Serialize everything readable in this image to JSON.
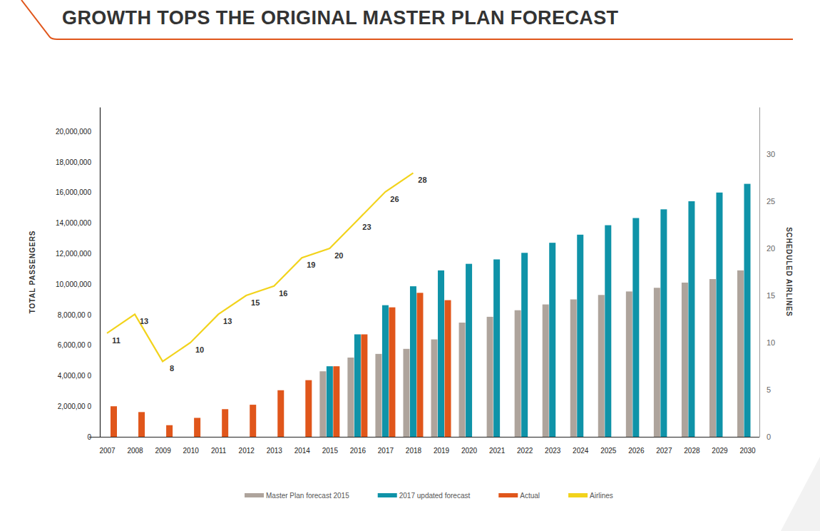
{
  "chart_data": {
    "type": "bar",
    "title": "GROWTH TOPS THE ORIGINAL MASTER PLAN FORECAST",
    "y_label": "TOTAL PASSENGERS",
    "y2_label": "SCHEDULED AIRLINES",
    "categories": [
      "2007",
      "2008",
      "2009",
      "2010",
      "2011",
      "2012",
      "2013",
      "2014",
      "2015",
      "2016",
      "2017",
      "2018",
      "2019",
      "2020",
      "2021",
      "2022",
      "2023",
      "2024",
      "2025",
      "2026",
      "2027",
      "2028",
      "2029",
      "2030"
    ],
    "series": [
      {
        "name": "Master Plan forecast 2015",
        "type": "bar",
        "color": "#aea49c",
        "values": [
          null,
          null,
          null,
          null,
          null,
          null,
          null,
          null,
          4290000,
          5190000,
          5430000,
          5760000,
          6380000,
          7480000,
          7860000,
          8290000,
          8670000,
          9000000,
          9290000,
          9520000,
          9760000,
          10100000,
          10330000,
          10900000
        ]
      },
      {
        "name": "2017 updated forecast",
        "type": "bar",
        "color": "#0f93a8",
        "values": [
          null,
          null,
          null,
          null,
          null,
          null,
          null,
          null,
          4620000,
          6710000,
          8620000,
          9860000,
          10900000,
          11330000,
          11620000,
          12050000,
          12710000,
          13240000,
          13860000,
          14330000,
          14900000,
          15430000,
          16000000,
          16570000
        ]
      },
      {
        "name": "Actual",
        "type": "bar",
        "color": "#e0561b",
        "values": [
          2000000,
          1620000,
          760000,
          1240000,
          1810000,
          2100000,
          3050000,
          3710000,
          4620000,
          6710000,
          8480000,
          9430000,
          8950000,
          null,
          null,
          null,
          null,
          null,
          null,
          null,
          null,
          null,
          null,
          null
        ]
      },
      {
        "name": "Airlines",
        "type": "line",
        "axis": "y2",
        "color": "#f2d31c",
        "data_labels": true,
        "values": [
          11,
          13,
          8,
          10,
          13,
          15,
          16,
          19,
          20,
          23,
          26,
          28,
          null,
          null,
          null,
          null,
          null,
          null,
          null,
          null,
          null,
          null,
          null,
          null
        ]
      }
    ],
    "ylim": [
      0,
      21600000
    ],
    "yticks": [
      0,
      {
        "value": 2000000,
        "label": "2,000,00 0"
      },
      {
        "value": 4000000,
        "label": "4,000,00 0"
      },
      {
        "value": 6000000,
        "label": "6,000,00 0"
      },
      {
        "value": 8000000,
        "label": "8,000,00 0"
      },
      {
        "value": 10000000,
        "label": "10,000,000"
      },
      {
        "value": 12000000,
        "label": "12,000,000"
      },
      {
        "value": 14000000,
        "label": "14,000,000"
      },
      {
        "value": 16000000,
        "label": "16,000,000"
      },
      {
        "value": 18000000,
        "label": "18,000,000"
      },
      {
        "value": 20000000,
        "label": "20,000,000"
      }
    ],
    "y2lim": [
      0,
      35
    ],
    "y2ticks": [
      0,
      5,
      10,
      15,
      20,
      25,
      30
    ],
    "grid": false,
    "legend": "bottom"
  }
}
